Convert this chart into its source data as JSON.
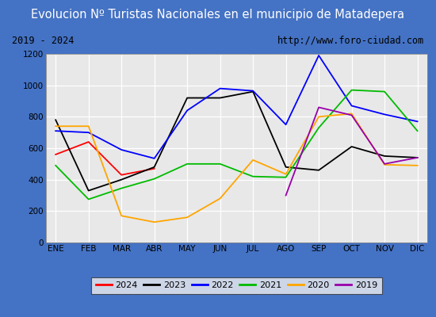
{
  "title": "Evolucion Nº Turistas Nacionales en el municipio de Matadepera",
  "subtitle_left": "2019 - 2024",
  "subtitle_right": "http://www.foro-ciudad.com",
  "months": [
    "ENE",
    "FEB",
    "MAR",
    "ABR",
    "MAY",
    "JUN",
    "JUL",
    "AGO",
    "SEP",
    "OCT",
    "NOV",
    "DIC"
  ],
  "ylim": [
    0,
    1200
  ],
  "yticks": [
    0,
    200,
    400,
    600,
    800,
    1000,
    1200
  ],
  "series": {
    "2024": {
      "color": "#ff0000",
      "values": [
        560,
        640,
        430,
        470,
        null,
        null,
        null,
        null,
        null,
        null,
        null,
        null
      ]
    },
    "2023": {
      "color": "#000000",
      "values": [
        780,
        330,
        400,
        480,
        920,
        920,
        960,
        480,
        460,
        610,
        550,
        540
      ]
    },
    "2022": {
      "color": "#0000ff",
      "values": [
        710,
        700,
        590,
        535,
        840,
        980,
        965,
        750,
        1190,
        870,
        815,
        770
      ]
    },
    "2021": {
      "color": "#00bb00",
      "values": [
        490,
        275,
        345,
        405,
        500,
        500,
        420,
        415,
        730,
        970,
        960,
        710
      ]
    },
    "2020": {
      "color": "#ffa500",
      "values": [
        740,
        740,
        170,
        130,
        160,
        280,
        525,
        435,
        800,
        820,
        495,
        490
      ]
    },
    "2019": {
      "color": "#9900aa",
      "values": [
        null,
        null,
        null,
        null,
        null,
        null,
        null,
        300,
        860,
        810,
        500,
        540
      ]
    }
  },
  "title_bg_color": "#4472c4",
  "title_font_color": "#ffffff",
  "plot_bg_color": "#e8e8e8",
  "grid_color": "#ffffff",
  "border_color": "#4472c4",
  "subtitle_bg_color": "#d4d4d4",
  "title_fontsize": 10.5,
  "subtitle_fontsize": 8.5,
  "tick_fontsize": 7.5,
  "legend_fontsize": 8
}
